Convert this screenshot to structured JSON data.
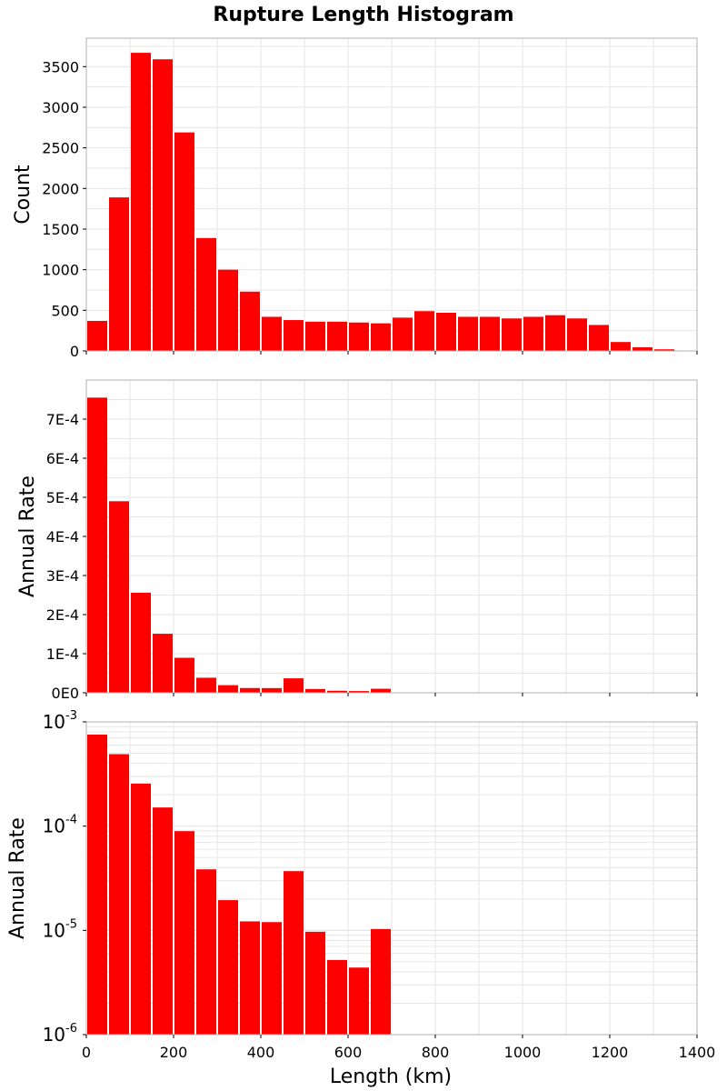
{
  "title": "Rupture Length Histogram",
  "xlabel": "Length (km)",
  "colors": {
    "bar": "#ff0000",
    "grid": "#e6e6e6",
    "frame": "#b0b0b0"
  },
  "x_ticks": [
    "0",
    "200",
    "400",
    "600",
    "800",
    "1000",
    "1200",
    "1400"
  ],
  "chart_data": [
    {
      "type": "bar",
      "scale": "linear",
      "ylabel": "Count",
      "xlim": [
        0,
        1400
      ],
      "ylim": [
        0,
        3850
      ],
      "bin_width": 50,
      "x": [
        25,
        75,
        125,
        175,
        225,
        275,
        325,
        375,
        425,
        475,
        525,
        575,
        625,
        675,
        725,
        775,
        825,
        875,
        925,
        975,
        1025,
        1075,
        1125,
        1175,
        1225,
        1275,
        1325,
        1375
      ],
      "values": [
        370,
        1890,
        3670,
        3590,
        2690,
        1390,
        1000,
        730,
        420,
        380,
        360,
        360,
        350,
        340,
        410,
        490,
        470,
        420,
        420,
        400,
        420,
        440,
        400,
        320,
        110,
        45,
        20,
        5
      ],
      "y_ticks": [
        0,
        500,
        1000,
        1500,
        2000,
        2500,
        3000,
        3500
      ],
      "y_tick_labels": [
        "0",
        "500",
        "1000",
        "1500",
        "2000",
        "2500",
        "3000",
        "3500"
      ]
    },
    {
      "type": "bar",
      "scale": "linear",
      "ylabel": "Annual Rate",
      "xlim": [
        0,
        1400
      ],
      "ylim": [
        0,
        0.0008
      ],
      "bin_width": 50,
      "x": [
        25,
        75,
        125,
        175,
        225,
        275,
        325,
        375,
        425,
        475,
        525,
        575,
        625,
        675
      ],
      "values": [
        0.000755,
        0.00049,
        0.000256,
        0.000151,
        8.95e-05,
        3.85e-05,
        1.95e-05,
        1.22e-05,
        1.2e-05,
        3.7e-05,
        9.7e-06,
        5.2e-06,
        4.4e-06,
        1.03e-05
      ],
      "y_ticks": [
        0,
        0.0001,
        0.0002,
        0.0003,
        0.0004,
        0.0005,
        0.0006,
        0.0007
      ],
      "y_tick_labels": [
        "0E0",
        "1E-4",
        "2E-4",
        "3E-4",
        "4E-4",
        "5E-4",
        "6E-4",
        "7E-4"
      ]
    },
    {
      "type": "bar",
      "scale": "log",
      "ylabel": "Annual Rate",
      "xlim": [
        0,
        1400
      ],
      "ylim": [
        1e-06,
        0.001
      ],
      "bin_width": 50,
      "x": [
        25,
        75,
        125,
        175,
        225,
        275,
        325,
        375,
        425,
        475,
        525,
        575,
        625,
        675
      ],
      "values": [
        0.000755,
        0.00049,
        0.000256,
        0.000151,
        8.95e-05,
        3.85e-05,
        1.95e-05,
        1.22e-05,
        1.2e-05,
        3.7e-05,
        9.7e-06,
        5.2e-06,
        4.4e-06,
        1.03e-05
      ],
      "y_ticks": [
        1e-06,
        1e-05,
        0.0001,
        0.001
      ],
      "y_tick_labels": [
        {
          "base": "10",
          "exp": "-6"
        },
        {
          "base": "10",
          "exp": "-5"
        },
        {
          "base": "10",
          "exp": "-4"
        },
        {
          "base": "10",
          "exp": "-3"
        }
      ]
    }
  ]
}
